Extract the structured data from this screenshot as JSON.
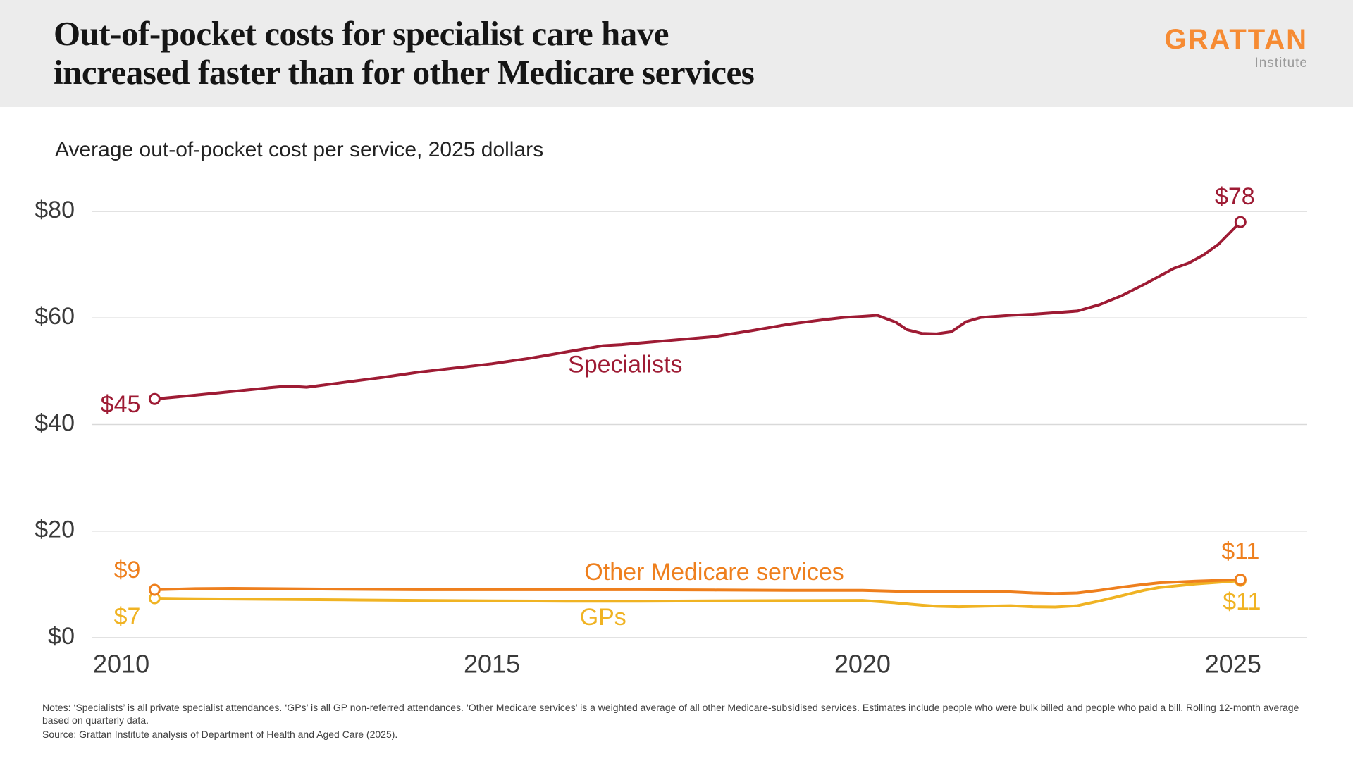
{
  "logo": {
    "name": "GRATTAN",
    "subname": "Institute",
    "color": "#F68B33"
  },
  "notes": {
    "notes_text": "Notes: ‘Specialists’ is all private specialist attendances. ‘GPs’ is all GP non-referred attendances. ‘Other Medicare services’ is a weighted average of all other Medicare-subsidised services. Estimates include people who were bulk billed and people who paid a bill. Rolling 12-month average based on quarterly data.",
    "source_text": "Source: Grattan Institute analysis of Department of Health and Aged Care (2025)."
  },
  "chart_data": {
    "type": "line",
    "title": "Out-of-pocket costs for specialist care have increased faster than for other Medicare services",
    "title_line1": "Out-of-pocket costs for specialist care have",
    "title_line2": "increased faster than for other Medicare services",
    "subtitle": "Average out-of-pocket cost per service, 2025 dollars",
    "grid": "horizontal",
    "grid_color": "#D9D9D9",
    "axis_text_color": "#3A3A3A",
    "ylim": [
      0,
      80
    ],
    "xlim": [
      2009.6,
      2026.0
    ],
    "yticks": [
      {
        "value": 0,
        "label": "$0"
      },
      {
        "value": 20,
        "label": "$20"
      },
      {
        "value": 40,
        "label": "$40"
      },
      {
        "value": 60,
        "label": "$60"
      },
      {
        "value": 80,
        "label": "$80"
      }
    ],
    "xticks": [
      {
        "value": 2010,
        "label": "2010"
      },
      {
        "value": 2015,
        "label": "2015"
      },
      {
        "value": 2020,
        "label": "2020"
      },
      {
        "value": 2025,
        "label": "2025"
      }
    ],
    "series": [
      {
        "name": "Specialists",
        "color": "#9E1B34",
        "start_label": "$45",
        "end_label": "$78",
        "label_x": 2016.8,
        "label_y": 51,
        "x": [
          2010.45,
          2011,
          2011.5,
          2012,
          2012.25,
          2012.5,
          2013,
          2013.5,
          2014,
          2014.5,
          2015,
          2015.5,
          2016,
          2016.5,
          2016.75,
          2017,
          2017.5,
          2018,
          2018.5,
          2019,
          2019.5,
          2019.75,
          2020,
          2020.2,
          2020.45,
          2020.6,
          2020.8,
          2021,
          2021.2,
          2021.4,
          2021.6,
          2021.8,
          2022,
          2022.3,
          2022.6,
          2022.9,
          2023.2,
          2023.5,
          2023.8,
          2024,
          2024.2,
          2024.4,
          2024.6,
          2024.8,
          2025.1
        ],
        "values": [
          44.8,
          45.5,
          46.2,
          46.9,
          47.2,
          47.0,
          47.9,
          48.8,
          49.8,
          50.6,
          51.4,
          52.4,
          53.6,
          54.8,
          55.0,
          55.3,
          55.9,
          56.5,
          57.6,
          58.8,
          59.7,
          60.1,
          60.3,
          60.5,
          59.2,
          57.8,
          57.1,
          57.0,
          57.4,
          59.3,
          60.1,
          60.3,
          60.5,
          60.7,
          61.0,
          61.3,
          62.5,
          64.2,
          66.3,
          67.8,
          69.3,
          70.3,
          71.8,
          73.8,
          78.0
        ]
      },
      {
        "name": "Other Medicare services",
        "color": "#EE7F1D",
        "start_label": "$9",
        "end_label": "$11",
        "label_x": 2018.0,
        "label_y": 12,
        "x": [
          2010.45,
          2011,
          2011.5,
          2012,
          2013,
          2014,
          2015,
          2016,
          2017,
          2018,
          2019,
          2020,
          2020.5,
          2021,
          2021.5,
          2022,
          2022.3,
          2022.6,
          2022.9,
          2023.2,
          2023.5,
          2023.8,
          2024,
          2024.5,
          2025.1
        ],
        "values": [
          9.0,
          9.2,
          9.25,
          9.2,
          9.1,
          9.0,
          9.0,
          9.0,
          9.0,
          8.95,
          8.9,
          8.9,
          8.7,
          8.7,
          8.6,
          8.6,
          8.4,
          8.3,
          8.4,
          8.9,
          9.5,
          10.0,
          10.3,
          10.6,
          10.9
        ]
      },
      {
        "name": "GPs",
        "color": "#F0B323",
        "start_label": "$7",
        "end_label": "$11",
        "label_x": 2016.5,
        "label_y": 3.6,
        "x": [
          2010.45,
          2011,
          2012,
          2013,
          2014,
          2015,
          2016,
          2017,
          2018,
          2019,
          2020,
          2020.4,
          2020.8,
          2021,
          2021.3,
          2021.6,
          2022,
          2022.3,
          2022.6,
          2022.9,
          2023.2,
          2023.5,
          2023.8,
          2024,
          2024.5,
          2025.1
        ],
        "values": [
          7.4,
          7.3,
          7.2,
          7.1,
          7.0,
          6.9,
          6.85,
          6.85,
          6.9,
          6.95,
          7.0,
          6.6,
          6.1,
          5.9,
          5.8,
          5.9,
          6.0,
          5.8,
          5.75,
          6.0,
          6.9,
          7.9,
          8.9,
          9.4,
          10.1,
          10.7
        ]
      }
    ]
  }
}
